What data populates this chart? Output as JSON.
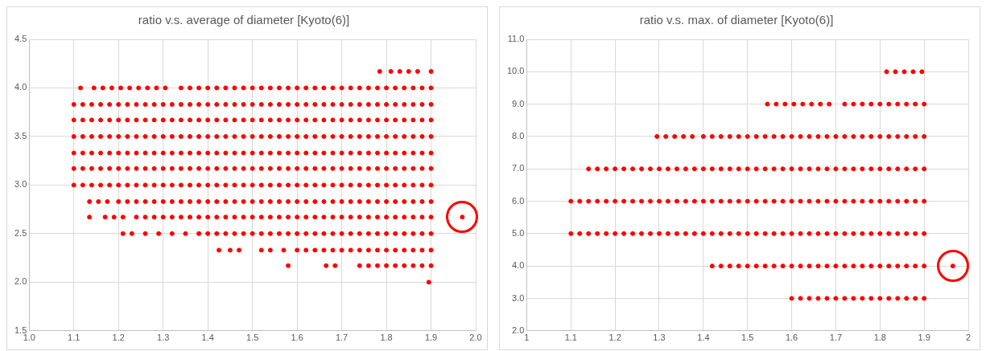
{
  "chart_data": [
    {
      "type": "scatter",
      "title": "ratio v.s. average of diameter [Kyoto(6)]",
      "xlim": [
        1.0,
        2.0
      ],
      "ylim": [
        1.5,
        4.5
      ],
      "xticks": [
        {
          "value": 1,
          "label": "1.0"
        },
        1.1,
        1.2,
        1.3,
        1.4,
        1.5,
        1.6,
        1.7,
        1.8,
        1.9,
        {
          "value": 2,
          "label": "2.0"
        }
      ],
      "yticks": [
        1.5,
        {
          "value": 2,
          "label": "2.0"
        },
        2.5,
        {
          "value": 3,
          "label": "3.0"
        },
        3.5,
        {
          "value": 4,
          "label": "4.0"
        },
        4.5
      ],
      "grid": true,
      "legend": false,
      "marker": "circle",
      "series": [
        {
          "color": "#ff0000",
          "x": [
            1.785,
            1.81,
            1.83,
            1.85,
            1.87,
            1.9
          ],
          "values": [
            4.17,
            4.17,
            4.17,
            4.17,
            4.17,
            4.17
          ]
        },
        {
          "color": "#ff0000",
          "x": [
            1.115,
            1.145,
            1.165,
            1.185,
            1.205,
            1.225,
            1.245,
            1.265,
            1.285,
            1.305,
            1.34,
            1.36,
            1.38,
            1.4,
            1.42,
            1.44,
            1.46,
            1.48,
            1.5,
            1.52,
            1.54,
            1.56,
            1.58,
            1.6,
            1.62,
            1.64,
            1.66,
            1.68,
            1.7,
            1.72,
            1.74,
            1.76,
            1.78,
            1.8,
            1.82,
            1.84,
            1.86,
            1.88,
            1.9
          ],
          "values": [
            4,
            4,
            4,
            4,
            4,
            4,
            4,
            4,
            4,
            4,
            4,
            4,
            4,
            4,
            4,
            4,
            4,
            4,
            4,
            4,
            4,
            4,
            4,
            4,
            4,
            4,
            4,
            4,
            4,
            4,
            4,
            4,
            4,
            4,
            4,
            4,
            4,
            4,
            4
          ]
        },
        {
          "color": "#ff0000",
          "x": [
            1.1,
            1.12,
            1.14,
            1.16,
            1.18,
            1.2,
            1.22,
            1.24,
            1.26,
            1.28,
            1.3,
            1.32,
            1.34,
            1.36,
            1.38,
            1.4,
            1.42,
            1.44,
            1.46,
            1.48,
            1.5,
            1.52,
            1.54,
            1.56,
            1.58,
            1.6,
            1.62,
            1.64,
            1.66,
            1.68,
            1.7,
            1.72,
            1.74,
            1.76,
            1.78,
            1.8,
            1.82,
            1.84,
            1.86,
            1.88,
            1.9
          ],
          "values": [
            3.83,
            3.83,
            3.83,
            3.83,
            3.83,
            3.83,
            3.83,
            3.83,
            3.83,
            3.83,
            3.83,
            3.83,
            3.83,
            3.83,
            3.83,
            3.83,
            3.83,
            3.83,
            3.83,
            3.83,
            3.83,
            3.83,
            3.83,
            3.83,
            3.83,
            3.83,
            3.83,
            3.83,
            3.83,
            3.83,
            3.83,
            3.83,
            3.83,
            3.83,
            3.83,
            3.83,
            3.83,
            3.83,
            3.83,
            3.83,
            3.83
          ]
        },
        {
          "color": "#ff0000",
          "x": [
            1.1,
            1.12,
            1.14,
            1.16,
            1.18,
            1.2,
            1.22,
            1.24,
            1.26,
            1.28,
            1.3,
            1.32,
            1.34,
            1.36,
            1.38,
            1.4,
            1.42,
            1.44,
            1.46,
            1.48,
            1.5,
            1.52,
            1.54,
            1.56,
            1.58,
            1.6,
            1.62,
            1.64,
            1.66,
            1.68,
            1.7,
            1.72,
            1.74,
            1.76,
            1.78,
            1.8,
            1.82,
            1.84,
            1.86,
            1.88,
            1.9
          ],
          "values": [
            3.67,
            3.67,
            3.67,
            3.67,
            3.67,
            3.67,
            3.67,
            3.67,
            3.67,
            3.67,
            3.67,
            3.67,
            3.67,
            3.67,
            3.67,
            3.67,
            3.67,
            3.67,
            3.67,
            3.67,
            3.67,
            3.67,
            3.67,
            3.67,
            3.67,
            3.67,
            3.67,
            3.67,
            3.67,
            3.67,
            3.67,
            3.67,
            3.67,
            3.67,
            3.67,
            3.67,
            3.67,
            3.67,
            3.67,
            3.67,
            3.67
          ]
        },
        {
          "color": "#ff0000",
          "x": [
            1.1,
            1.12,
            1.14,
            1.16,
            1.18,
            1.2,
            1.22,
            1.24,
            1.26,
            1.28,
            1.3,
            1.32,
            1.34,
            1.36,
            1.38,
            1.4,
            1.42,
            1.44,
            1.46,
            1.48,
            1.5,
            1.52,
            1.54,
            1.56,
            1.58,
            1.6,
            1.62,
            1.64,
            1.66,
            1.68,
            1.7,
            1.72,
            1.74,
            1.76,
            1.78,
            1.8,
            1.82,
            1.84,
            1.86,
            1.88,
            1.9
          ],
          "values": [
            3.5,
            3.5,
            3.5,
            3.5,
            3.5,
            3.5,
            3.5,
            3.5,
            3.5,
            3.5,
            3.5,
            3.5,
            3.5,
            3.5,
            3.5,
            3.5,
            3.5,
            3.5,
            3.5,
            3.5,
            3.5,
            3.5,
            3.5,
            3.5,
            3.5,
            3.5,
            3.5,
            3.5,
            3.5,
            3.5,
            3.5,
            3.5,
            3.5,
            3.5,
            3.5,
            3.5,
            3.5,
            3.5,
            3.5,
            3.5,
            3.5
          ]
        },
        {
          "color": "#ff0000",
          "x": [
            1.1,
            1.12,
            1.14,
            1.16,
            1.18,
            1.2,
            1.22,
            1.24,
            1.26,
            1.28,
            1.3,
            1.32,
            1.34,
            1.36,
            1.38,
            1.4,
            1.42,
            1.44,
            1.46,
            1.48,
            1.5,
            1.52,
            1.54,
            1.56,
            1.58,
            1.6,
            1.62,
            1.64,
            1.66,
            1.68,
            1.7,
            1.72,
            1.74,
            1.76,
            1.78,
            1.8,
            1.82,
            1.84,
            1.86,
            1.88,
            1.9
          ],
          "values": [
            3.33,
            3.33,
            3.33,
            3.33,
            3.33,
            3.33,
            3.33,
            3.33,
            3.33,
            3.33,
            3.33,
            3.33,
            3.33,
            3.33,
            3.33,
            3.33,
            3.33,
            3.33,
            3.33,
            3.33,
            3.33,
            3.33,
            3.33,
            3.33,
            3.33,
            3.33,
            3.33,
            3.33,
            3.33,
            3.33,
            3.33,
            3.33,
            3.33,
            3.33,
            3.33,
            3.33,
            3.33,
            3.33,
            3.33,
            3.33,
            3.33
          ]
        },
        {
          "color": "#ff0000",
          "x": [
            1.1,
            1.12,
            1.14,
            1.16,
            1.18,
            1.2,
            1.22,
            1.24,
            1.26,
            1.28,
            1.3,
            1.32,
            1.34,
            1.36,
            1.38,
            1.4,
            1.42,
            1.44,
            1.46,
            1.48,
            1.5,
            1.52,
            1.54,
            1.56,
            1.58,
            1.6,
            1.62,
            1.64,
            1.66,
            1.68,
            1.7,
            1.72,
            1.74,
            1.76,
            1.78,
            1.8,
            1.82,
            1.84,
            1.86,
            1.88,
            1.9
          ],
          "values": [
            3.17,
            3.17,
            3.17,
            3.17,
            3.17,
            3.17,
            3.17,
            3.17,
            3.17,
            3.17,
            3.17,
            3.17,
            3.17,
            3.17,
            3.17,
            3.17,
            3.17,
            3.17,
            3.17,
            3.17,
            3.17,
            3.17,
            3.17,
            3.17,
            3.17,
            3.17,
            3.17,
            3.17,
            3.17,
            3.17,
            3.17,
            3.17,
            3.17,
            3.17,
            3.17,
            3.17,
            3.17,
            3.17,
            3.17,
            3.17,
            3.17
          ]
        },
        {
          "color": "#ff0000",
          "x": [
            1.1,
            1.12,
            1.14,
            1.16,
            1.18,
            1.2,
            1.22,
            1.24,
            1.26,
            1.28,
            1.3,
            1.32,
            1.34,
            1.36,
            1.38,
            1.4,
            1.42,
            1.44,
            1.46,
            1.48,
            1.5,
            1.52,
            1.54,
            1.56,
            1.58,
            1.6,
            1.62,
            1.64,
            1.66,
            1.68,
            1.7,
            1.72,
            1.74,
            1.76,
            1.78,
            1.8,
            1.82,
            1.84,
            1.86,
            1.88,
            1.9
          ],
          "values": [
            3,
            3,
            3,
            3,
            3,
            3,
            3,
            3,
            3,
            3,
            3,
            3,
            3,
            3,
            3,
            3,
            3,
            3,
            3,
            3,
            3,
            3,
            3,
            3,
            3,
            3,
            3,
            3,
            3,
            3,
            3,
            3,
            3,
            3,
            3,
            3,
            3,
            3,
            3,
            3,
            3
          ]
        },
        {
          "color": "#ff0000",
          "x": [
            1.135,
            1.155,
            1.175,
            1.2,
            1.22,
            1.24,
            1.26,
            1.28,
            1.3,
            1.32,
            1.34,
            1.36,
            1.38,
            1.4,
            1.42,
            1.44,
            1.46,
            1.48,
            1.5,
            1.52,
            1.54,
            1.56,
            1.58,
            1.6,
            1.62,
            1.64,
            1.66,
            1.68,
            1.7,
            1.72,
            1.74,
            1.76,
            1.78,
            1.8,
            1.82,
            1.84,
            1.86,
            1.88,
            1.9
          ],
          "values": [
            2.83,
            2.83,
            2.83,
            2.83,
            2.83,
            2.83,
            2.83,
            2.83,
            2.83,
            2.83,
            2.83,
            2.83,
            2.83,
            2.83,
            2.83,
            2.83,
            2.83,
            2.83,
            2.83,
            2.83,
            2.83,
            2.83,
            2.83,
            2.83,
            2.83,
            2.83,
            2.83,
            2.83,
            2.83,
            2.83,
            2.83,
            2.83,
            2.83,
            2.83,
            2.83,
            2.83,
            2.83,
            2.83,
            2.83
          ]
        },
        {
          "color": "#ff0000",
          "x": [
            1.135,
            1.17,
            1.19,
            1.21,
            1.24,
            1.26,
            1.28,
            1.3,
            1.32,
            1.34,
            1.36,
            1.38,
            1.4,
            1.42,
            1.44,
            1.46,
            1.48,
            1.5,
            1.52,
            1.54,
            1.56,
            1.58,
            1.6,
            1.62,
            1.64,
            1.66,
            1.68,
            1.7,
            1.72,
            1.74,
            1.76,
            1.78,
            1.8,
            1.82,
            1.84,
            1.86,
            1.88,
            1.9,
            1.97
          ],
          "values": [
            2.67,
            2.67,
            2.67,
            2.67,
            2.67,
            2.67,
            2.67,
            2.67,
            2.67,
            2.67,
            2.67,
            2.67,
            2.67,
            2.67,
            2.67,
            2.67,
            2.67,
            2.67,
            2.67,
            2.67,
            2.67,
            2.67,
            2.67,
            2.67,
            2.67,
            2.67,
            2.67,
            2.67,
            2.67,
            2.67,
            2.67,
            2.67,
            2.67,
            2.67,
            2.67,
            2.67,
            2.67,
            2.67,
            2.67
          ]
        },
        {
          "color": "#ff0000",
          "x": [
            1.21,
            1.23,
            1.26,
            1.29,
            1.32,
            1.35,
            1.38,
            1.4,
            1.42,
            1.44,
            1.46,
            1.48,
            1.5,
            1.52,
            1.54,
            1.56,
            1.58,
            1.6,
            1.62,
            1.64,
            1.66,
            1.68,
            1.7,
            1.72,
            1.74,
            1.76,
            1.78,
            1.8,
            1.82,
            1.84,
            1.86,
            1.88,
            1.9
          ],
          "values": [
            2.5,
            2.5,
            2.5,
            2.5,
            2.5,
            2.5,
            2.5,
            2.5,
            2.5,
            2.5,
            2.5,
            2.5,
            2.5,
            2.5,
            2.5,
            2.5,
            2.5,
            2.5,
            2.5,
            2.5,
            2.5,
            2.5,
            2.5,
            2.5,
            2.5,
            2.5,
            2.5,
            2.5,
            2.5,
            2.5,
            2.5,
            2.5,
            2.5
          ]
        },
        {
          "color": "#ff0000",
          "x": [
            1.425,
            1.45,
            1.47,
            1.52,
            1.54,
            1.57,
            1.6,
            1.62,
            1.64,
            1.66,
            1.68,
            1.7,
            1.72,
            1.74,
            1.76,
            1.78,
            1.8,
            1.82,
            1.84,
            1.86,
            1.88,
            1.9
          ],
          "values": [
            2.33,
            2.33,
            2.33,
            2.33,
            2.33,
            2.33,
            2.33,
            2.33,
            2.33,
            2.33,
            2.33,
            2.33,
            2.33,
            2.33,
            2.33,
            2.33,
            2.33,
            2.33,
            2.33,
            2.33,
            2.33,
            2.33
          ]
        },
        {
          "color": "#ff0000",
          "x": [
            1.58,
            1.665,
            1.685,
            1.74,
            1.76,
            1.78,
            1.8,
            1.82,
            1.84,
            1.86,
            1.88,
            1.9
          ],
          "values": [
            2.17,
            2.17,
            2.17,
            2.17,
            2.17,
            2.17,
            2.17,
            2.17,
            2.17,
            2.17,
            2.17,
            2.17
          ]
        },
        {
          "color": "#ff0000",
          "x": [
            1.895
          ],
          "values": [
            2
          ]
        }
      ]
    },
    {
      "type": "scatter",
      "title": "ratio v.s. max. of diameter [Kyoto(6)]",
      "xlim": [
        1,
        2
      ],
      "ylim": [
        2,
        11
      ],
      "xticks": [
        1,
        1.1,
        1.2,
        1.3,
        1.4,
        1.5,
        1.6,
        1.7,
        1.8,
        1.9,
        2
      ],
      "yticks": [
        {
          "value": 2,
          "label": "2.0"
        },
        {
          "value": 3,
          "label": "3.0"
        },
        {
          "value": 4,
          "label": "4.0"
        },
        {
          "value": 5,
          "label": "5.0"
        },
        {
          "value": 6,
          "label": "6.0"
        },
        {
          "value": 7,
          "label": "7.0"
        },
        {
          "value": 8,
          "label": "8.0"
        },
        {
          "value": 9,
          "label": "9.0"
        },
        {
          "value": 10,
          "label": "10.0"
        },
        {
          "value": 11,
          "label": "11.0"
        }
      ],
      "grid": true,
      "legend": false,
      "marker": "circle",
      "series": [
        {
          "color": "#ff0000",
          "x": [
            1.815,
            1.835,
            1.855,
            1.875,
            1.895
          ],
          "values": [
            10,
            10,
            10,
            10,
            10
          ]
        },
        {
          "color": "#ff0000",
          "x": [
            1.545,
            1.565,
            1.585,
            1.605,
            1.625,
            1.645,
            1.665,
            1.685,
            1.72,
            1.74,
            1.76,
            1.78,
            1.8,
            1.82,
            1.84,
            1.86,
            1.88,
            1.9
          ],
          "values": [
            9,
            9,
            9,
            9,
            9,
            9,
            9,
            9,
            9,
            9,
            9,
            9,
            9,
            9,
            9,
            9,
            9,
            9
          ]
        },
        {
          "color": "#ff0000",
          "x": [
            1.295,
            1.315,
            1.335,
            1.355,
            1.375,
            1.4,
            1.42,
            1.44,
            1.46,
            1.48,
            1.5,
            1.52,
            1.54,
            1.56,
            1.58,
            1.6,
            1.62,
            1.64,
            1.66,
            1.68,
            1.7,
            1.72,
            1.74,
            1.76,
            1.78,
            1.8,
            1.82,
            1.84,
            1.86,
            1.88,
            1.9
          ],
          "values": [
            8,
            8,
            8,
            8,
            8,
            8,
            8,
            8,
            8,
            8,
            8,
            8,
            8,
            8,
            8,
            8,
            8,
            8,
            8,
            8,
            8,
            8,
            8,
            8,
            8,
            8,
            8,
            8,
            8,
            8,
            8
          ]
        },
        {
          "color": "#ff0000",
          "x": [
            1.14,
            1.16,
            1.18,
            1.2,
            1.22,
            1.24,
            1.26,
            1.28,
            1.3,
            1.32,
            1.34,
            1.36,
            1.38,
            1.4,
            1.42,
            1.44,
            1.46,
            1.48,
            1.5,
            1.52,
            1.54,
            1.56,
            1.58,
            1.6,
            1.62,
            1.64,
            1.66,
            1.68,
            1.7,
            1.72,
            1.74,
            1.76,
            1.78,
            1.8,
            1.82,
            1.84,
            1.86,
            1.88,
            1.9
          ],
          "values": [
            7,
            7,
            7,
            7,
            7,
            7,
            7,
            7,
            7,
            7,
            7,
            7,
            7,
            7,
            7,
            7,
            7,
            7,
            7,
            7,
            7,
            7,
            7,
            7,
            7,
            7,
            7,
            7,
            7,
            7,
            7,
            7,
            7,
            7,
            7,
            7,
            7,
            7,
            7
          ]
        },
        {
          "color": "#ff0000",
          "x": [
            1.1,
            1.12,
            1.14,
            1.16,
            1.18,
            1.2,
            1.22,
            1.24,
            1.26,
            1.28,
            1.3,
            1.32,
            1.34,
            1.36,
            1.38,
            1.4,
            1.42,
            1.44,
            1.46,
            1.48,
            1.5,
            1.52,
            1.54,
            1.56,
            1.58,
            1.6,
            1.62,
            1.64,
            1.66,
            1.68,
            1.7,
            1.72,
            1.74,
            1.76,
            1.78,
            1.8,
            1.82,
            1.84,
            1.86,
            1.88,
            1.9
          ],
          "values": [
            6,
            6,
            6,
            6,
            6,
            6,
            6,
            6,
            6,
            6,
            6,
            6,
            6,
            6,
            6,
            6,
            6,
            6,
            6,
            6,
            6,
            6,
            6,
            6,
            6,
            6,
            6,
            6,
            6,
            6,
            6,
            6,
            6,
            6,
            6,
            6,
            6,
            6,
            6,
            6,
            6
          ]
        },
        {
          "color": "#ff0000",
          "x": [
            1.1,
            1.12,
            1.14,
            1.16,
            1.18,
            1.2,
            1.22,
            1.24,
            1.26,
            1.28,
            1.3,
            1.32,
            1.34,
            1.36,
            1.38,
            1.4,
            1.42,
            1.44,
            1.46,
            1.48,
            1.5,
            1.52,
            1.54,
            1.56,
            1.58,
            1.6,
            1.62,
            1.64,
            1.66,
            1.68,
            1.7,
            1.72,
            1.74,
            1.76,
            1.78,
            1.8,
            1.82,
            1.84,
            1.86,
            1.88,
            1.9
          ],
          "values": [
            5,
            5,
            5,
            5,
            5,
            5,
            5,
            5,
            5,
            5,
            5,
            5,
            5,
            5,
            5,
            5,
            5,
            5,
            5,
            5,
            5,
            5,
            5,
            5,
            5,
            5,
            5,
            5,
            5,
            5,
            5,
            5,
            5,
            5,
            5,
            5,
            5,
            5,
            5,
            5,
            5
          ]
        },
        {
          "color": "#ff0000",
          "x": [
            1.42,
            1.44,
            1.46,
            1.48,
            1.5,
            1.52,
            1.54,
            1.56,
            1.58,
            1.6,
            1.62,
            1.64,
            1.66,
            1.68,
            1.7,
            1.72,
            1.74,
            1.76,
            1.78,
            1.8,
            1.82,
            1.84,
            1.86,
            1.88,
            1.9
          ],
          "values": [
            4,
            4,
            4,
            4,
            4,
            4,
            4,
            4,
            4,
            4,
            4,
            4,
            4,
            4,
            4,
            4,
            4,
            4,
            4,
            4,
            4,
            4,
            4,
            4,
            4
          ]
        },
        {
          "color": "#ff0000",
          "x": [
            1.965
          ],
          "values": [
            4
          ]
        },
        {
          "color": "#ff0000",
          "x": [
            1.6,
            1.62,
            1.64,
            1.66,
            1.68,
            1.7,
            1.72,
            1.74,
            1.76,
            1.78,
            1.8,
            1.82,
            1.84,
            1.86,
            1.88,
            1.9
          ],
          "values": [
            3,
            3,
            3,
            3,
            3,
            3,
            3,
            3,
            3,
            3,
            3,
            3,
            3,
            3,
            3,
            3
          ]
        }
      ]
    }
  ]
}
